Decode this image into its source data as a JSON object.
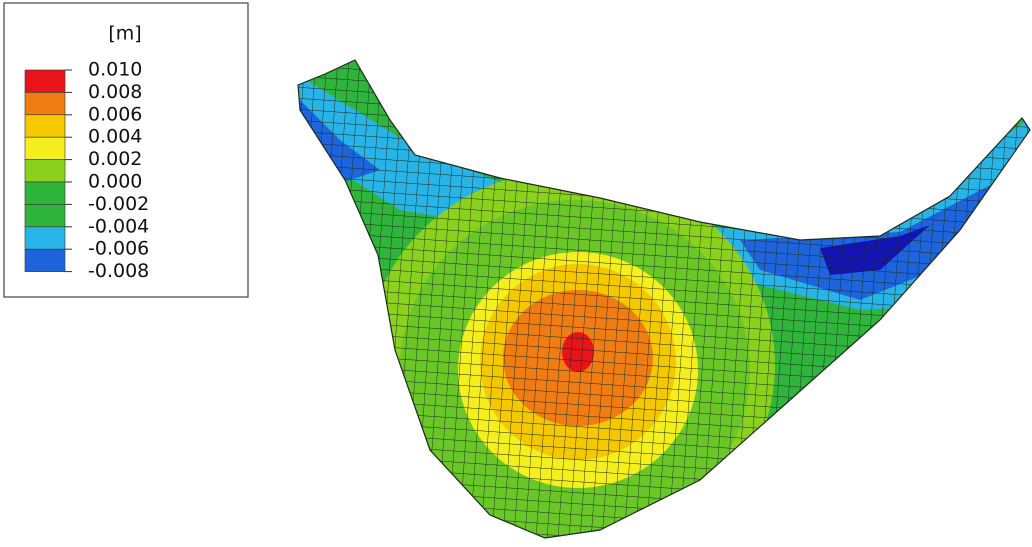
{
  "legend": {
    "unit": "[m]",
    "levels": [
      "0.010",
      "0.008",
      "0.006",
      "0.004",
      "0.002",
      "0.000",
      "-0.002",
      "-0.004",
      "-0.006",
      "-0.008"
    ],
    "colors": [
      "#e8141a",
      "#f07d14",
      "#f5c800",
      "#f5ef1e",
      "#8ad21e",
      "#2fb43c",
      "#2fb43c",
      "#28b4e6",
      "#1e64dc",
      "#1414b4"
    ]
  }
}
